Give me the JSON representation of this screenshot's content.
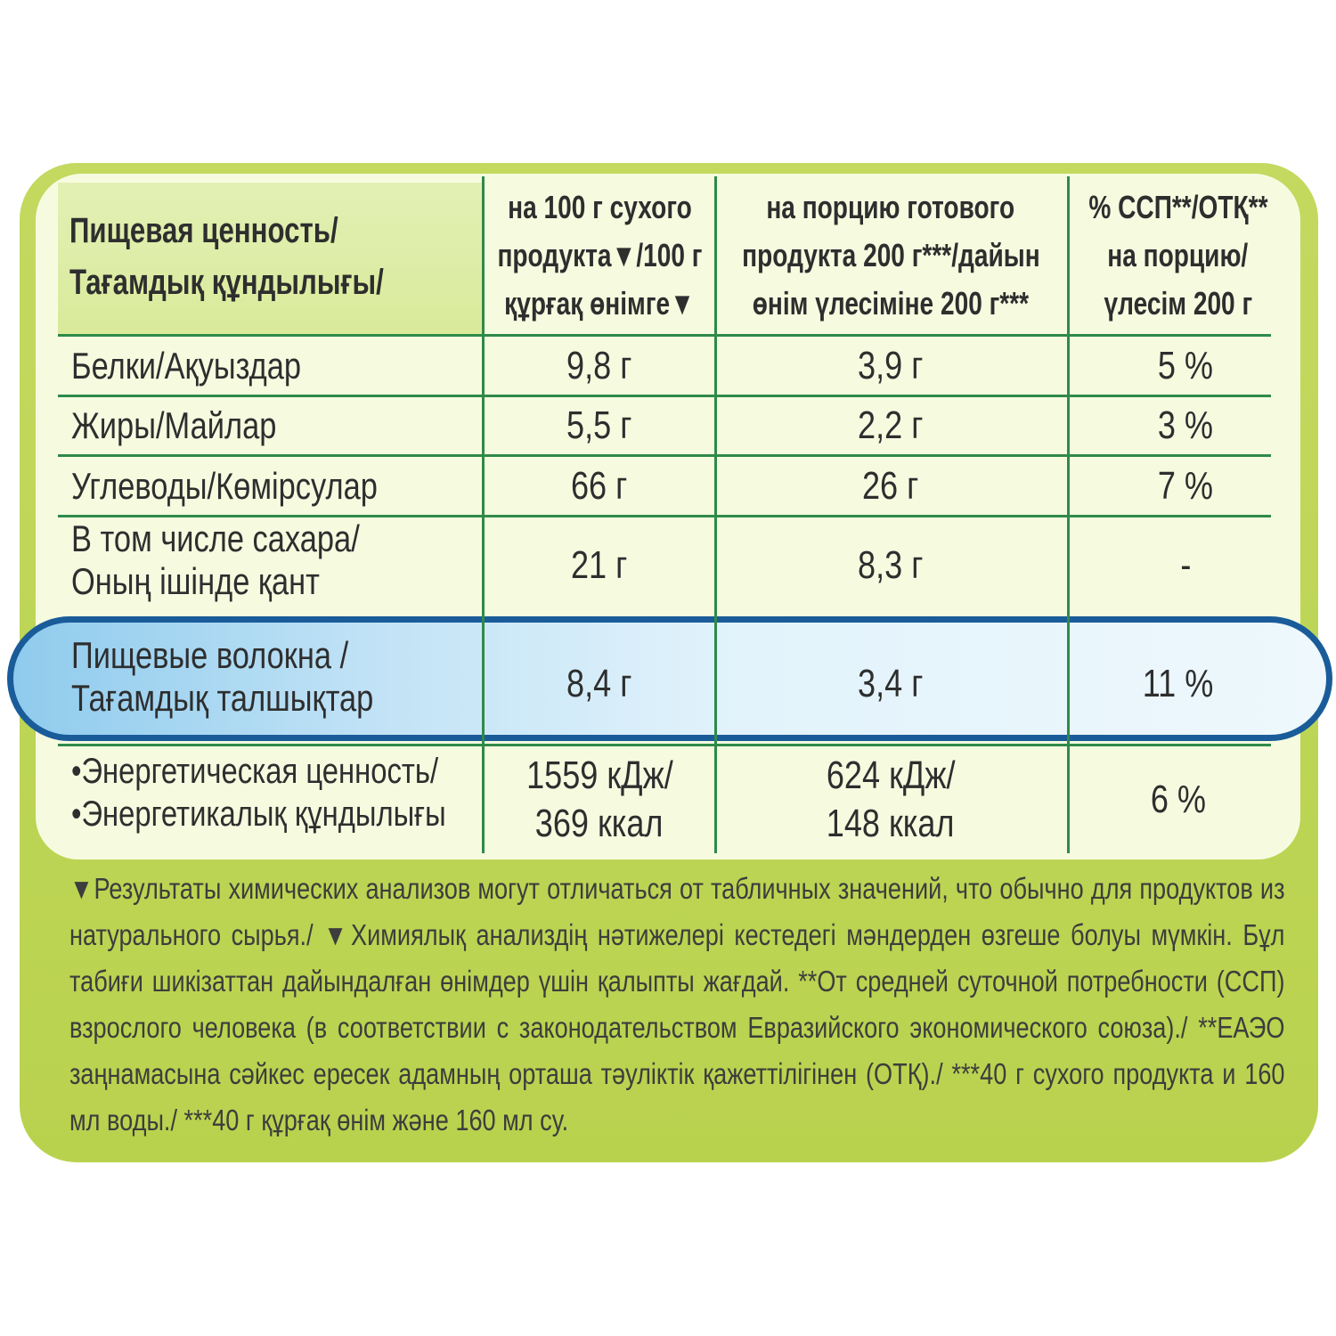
{
  "table": {
    "header": {
      "col0": [
        "Пищевая ценность/",
        "Тағамдық құндылығы/"
      ],
      "col1": [
        "на 100 г сухого",
        "продукта▼/100 г",
        "құрғақ өнімге▼"
      ],
      "col2": [
        "на порцию готового",
        "продукта 200 г***/дайын",
        "өнім үлесіміне 200 г***"
      ],
      "col3": [
        "% ССП**/ОТҚ**",
        "на порцию/",
        "үлесім 200 г"
      ]
    },
    "rows": [
      {
        "label": [
          "Белки/Ақуыздар"
        ],
        "per100": [
          "9,8 г"
        ],
        "portion": [
          "3,9 г"
        ],
        "percent": "5 %"
      },
      {
        "label": [
          "Жиры/Майлар"
        ],
        "per100": [
          "5,5 г"
        ],
        "portion": [
          "2,2 г"
        ],
        "percent": "3 %"
      },
      {
        "label": [
          "Углеводы/Көмірсулар"
        ],
        "per100": [
          "66 г"
        ],
        "portion": [
          "26 г"
        ],
        "percent": "7 %"
      },
      {
        "label": [
          "В том числе сахара/",
          "Оның ішінде қант"
        ],
        "per100": [
          "21 г"
        ],
        "portion": [
          "8,3 г"
        ],
        "percent": "-"
      },
      {
        "label": [
          "Пищевые волокна /",
          "Тағамдық талшықтар"
        ],
        "per100": [
          "8,4 г"
        ],
        "portion": [
          "3,4 г"
        ],
        "percent": "11 %",
        "highlighted": true
      },
      {
        "label": [
          "•Энергетическая ценность/",
          "•Энергетикалық құндылығы"
        ],
        "per100": [
          "1559 кДж/",
          "369 ккал"
        ],
        "portion": [
          "624 кДж/",
          "148 ккал"
        ],
        "percent": "6 %"
      }
    ]
  },
  "footnote": "▼Результаты химических анализов могут отличаться от табличных значений, что обычно для продуктов из натурального сырья./ ▼Химиялық анализдің нәтижелері кестедегі мәндерден өзгеше болуы мүмкін. Бұл табиғи шикізаттан дайындалған өнімдер үшін қалыпты жағдай. **От средней суточной потребности (ССП) взрослого человека (в соответствии с законодательством Евразийского экономического союза)./ **ЕАЭО заңнамасына сәйкес ересек адамның орташа тәуліктік қажеттілігінен (ОТҚ)./ ***40 г сухого продукта и 160 мл воды./ ***40 г құрғақ өнім және 160 мл су.",
  "colors": {
    "outer_green": "#bcd452",
    "inner_cream": "#f6fbe0",
    "grid_green": "#2f8a4a",
    "highlight_border": "#1a5c99",
    "highlight_fill": "#a9d8f2"
  }
}
